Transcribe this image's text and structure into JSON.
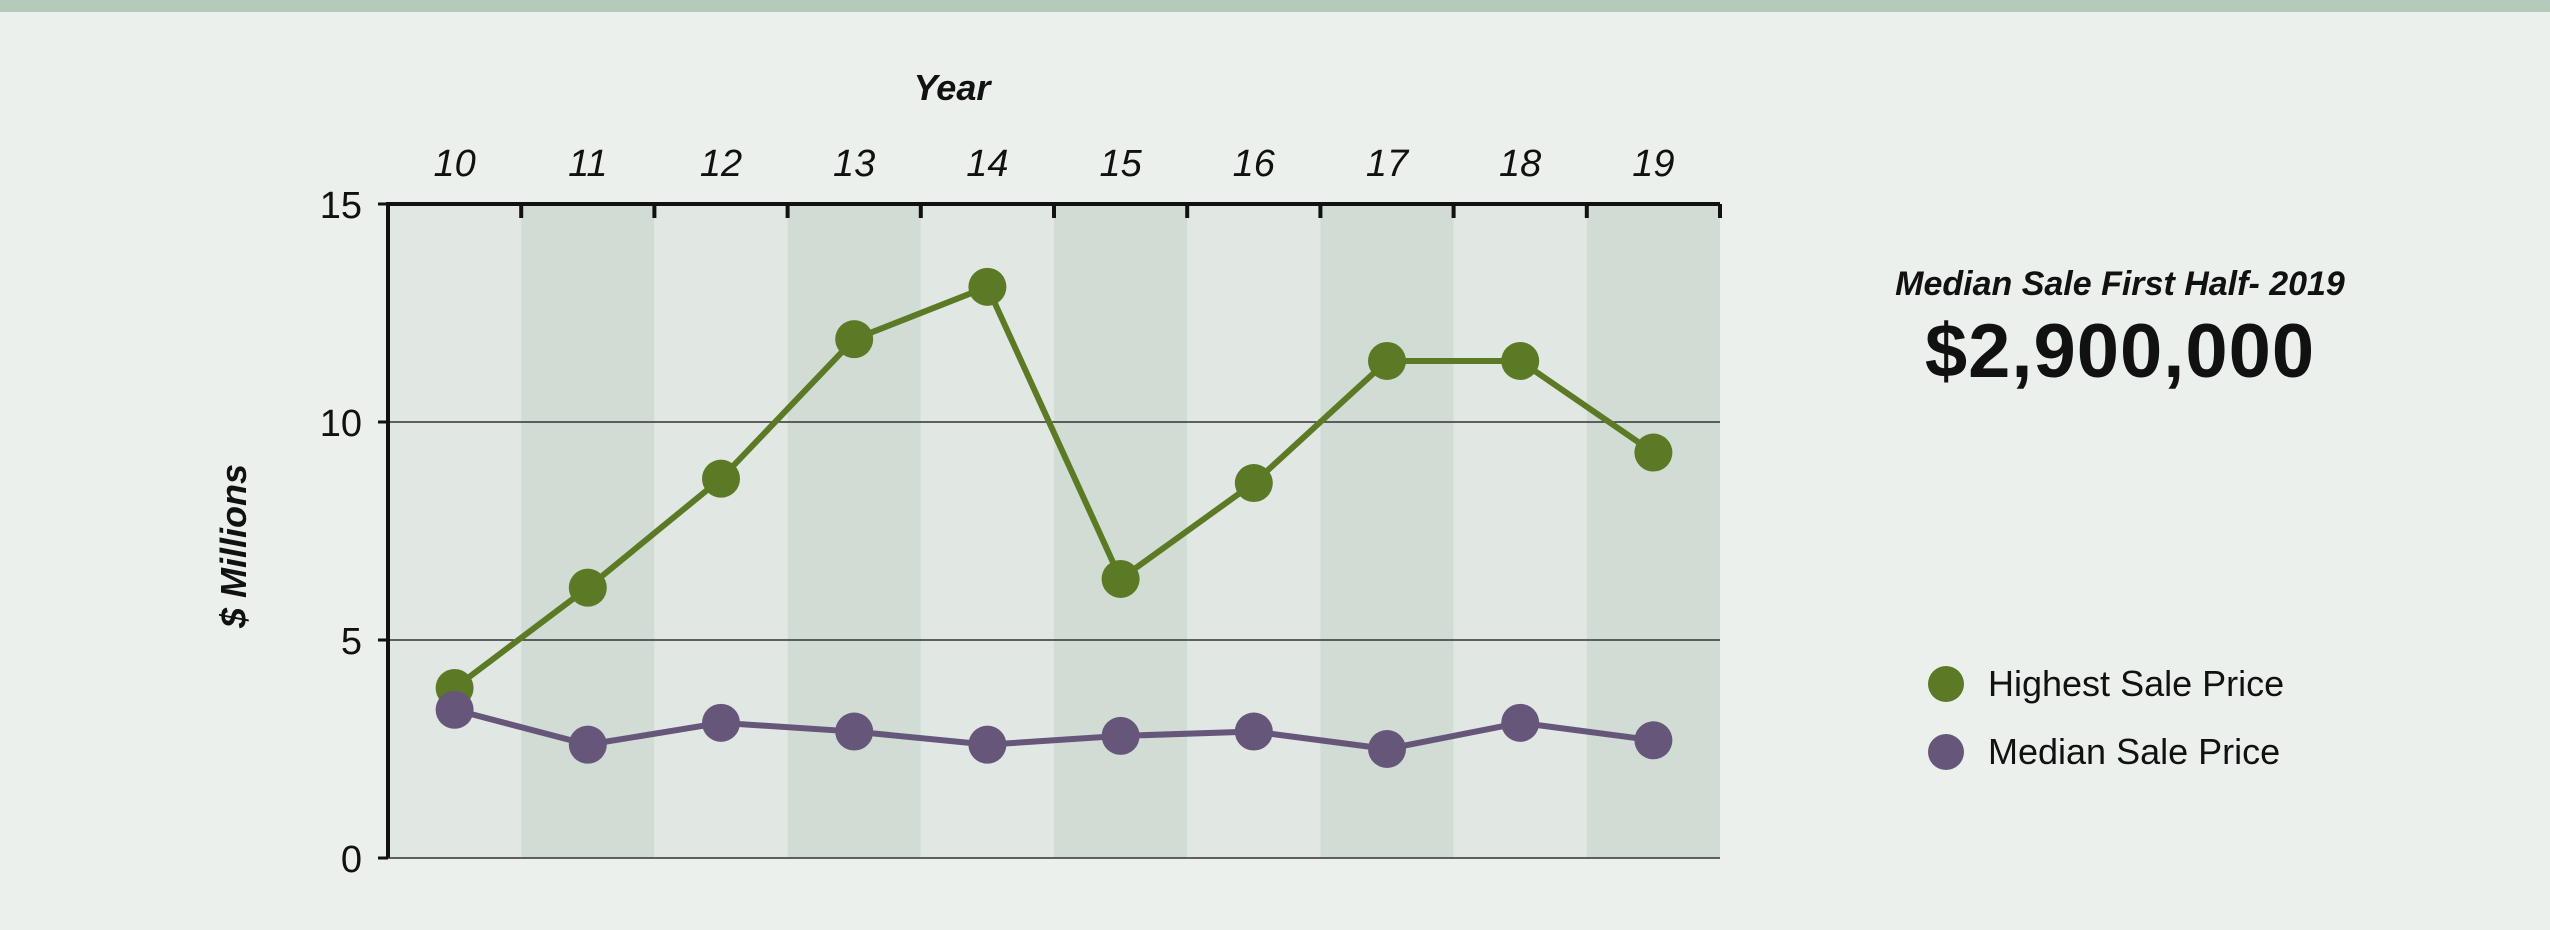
{
  "colors": {
    "background": "#ebf0ec",
    "band_light": "#e1e8e3",
    "band_dark": "#d1dcd4",
    "highest": "#5c7a25",
    "median": "#66577a"
  },
  "kpi": {
    "label": "Median Sale First Half- 2019",
    "value": "$2,900,000"
  },
  "chart_data": {
    "type": "line",
    "title": "",
    "xlabel": "Year",
    "ylabel": "$ Millions",
    "x_axis_position": "top",
    "categories": [
      "10",
      "11",
      "12",
      "13",
      "14",
      "15",
      "16",
      "17",
      "18",
      "19"
    ],
    "ylim": [
      0,
      15
    ],
    "yticks": [
      0,
      5,
      10,
      15
    ],
    "grid": true,
    "alternating_bands": true,
    "legend_position": "right",
    "series": [
      {
        "name": "Highest Sale Price",
        "values": [
          3.9,
          6.2,
          8.7,
          11.9,
          13.1,
          6.4,
          8.6,
          11.4,
          11.4,
          9.3
        ]
      },
      {
        "name": "Median Sale Price",
        "values": [
          3.4,
          2.6,
          3.1,
          2.9,
          2.6,
          2.8,
          2.9,
          2.5,
          3.1,
          2.7
        ]
      }
    ]
  }
}
